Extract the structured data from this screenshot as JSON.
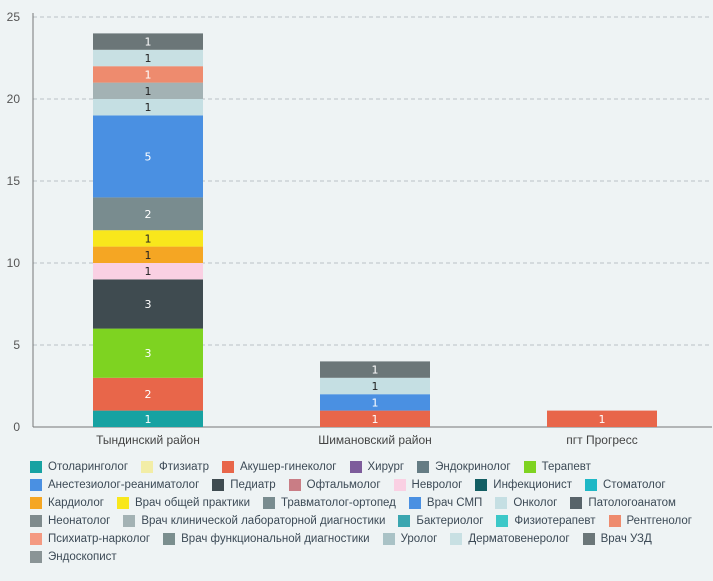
{
  "chart_data": {
    "type": "bar",
    "stacked": true,
    "title": "",
    "xlabel": "",
    "ylabel": "",
    "ylim": [
      0,
      25
    ],
    "yticks": [
      0,
      5,
      10,
      15,
      20,
      25
    ],
    "grid": true,
    "legend_position": "bottom",
    "categories": [
      "Тындинский район",
      "Шимановский район",
      "пгт Прогресс"
    ],
    "series": [
      {
        "name": "Отоларинголог",
        "color": "#17a2a2",
        "values": [
          1,
          0,
          0
        ]
      },
      {
        "name": "Фтизиатр",
        "color": "#f2eda6",
        "values": [
          0,
          0,
          0
        ]
      },
      {
        "name": "Акушер-гинеколог",
        "color": "#e8664a",
        "values": [
          2,
          1,
          1
        ]
      },
      {
        "name": "Хирург",
        "color": "#7d5c9b",
        "values": [
          0,
          0,
          0
        ]
      },
      {
        "name": "Эндокринолог",
        "color": "#657c84",
        "values": [
          0,
          0,
          0
        ]
      },
      {
        "name": "Терапевт",
        "color": "#7ed321",
        "values": [
          3,
          0,
          0
        ]
      },
      {
        "name": "Анестезиолог-реаниматолог",
        "color": "#4a90e2",
        "values": [
          0,
          0,
          0
        ]
      },
      {
        "name": "Педиатр",
        "color": "#3f4b50",
        "values": [
          3,
          0,
          0
        ]
      },
      {
        "name": "Офтальмолог",
        "color": "#c97d85",
        "values": [
          0,
          0,
          0
        ]
      },
      {
        "name": "Невролог",
        "color": "#fad0e3",
        "values": [
          1,
          0,
          0
        ]
      },
      {
        "name": "Инфекционист",
        "color": "#135e63",
        "values": [
          0,
          0,
          0
        ]
      },
      {
        "name": "Стоматолог",
        "color": "#1fb8c6",
        "values": [
          0,
          0,
          0
        ]
      },
      {
        "name": "Кардиолог",
        "color": "#f5a623",
        "values": [
          1,
          0,
          0
        ]
      },
      {
        "name": "Врач общей практики",
        "color": "#f8e71c",
        "values": [
          1,
          0,
          0
        ]
      },
      {
        "name": "Травматолог-ортопед",
        "color": "#798c8f",
        "values": [
          2,
          0,
          0
        ]
      },
      {
        "name": "Врач СМП",
        "color": "#4a90e2",
        "values": [
          5,
          1,
          0
        ]
      },
      {
        "name": "Онколог",
        "color": "#c5dfe3",
        "values": [
          1,
          1,
          0
        ]
      },
      {
        "name": "Патологоанатом",
        "color": "#58646a",
        "values": [
          0,
          0,
          0
        ]
      },
      {
        "name": "Неонатолог",
        "color": "#7f8b8d",
        "values": [
          0,
          0,
          0
        ]
      },
      {
        "name": "Врач клинической лабораторной диагностики",
        "color": "#a3b2b4",
        "values": [
          1,
          0,
          0
        ]
      },
      {
        "name": "Бактериолог",
        "color": "#3aa6b0",
        "values": [
          0,
          0,
          0
        ]
      },
      {
        "name": "Физиотерапевт",
        "color": "#3cc8c8",
        "values": [
          0,
          0,
          0
        ]
      },
      {
        "name": "Рентгенолог",
        "color": "#ee8b6e",
        "values": [
          1,
          0,
          0
        ]
      },
      {
        "name": "Психиатр-нарколог",
        "color": "#f49a82",
        "values": [
          0,
          0,
          0
        ]
      },
      {
        "name": "Врач функциональной диагностики",
        "color": "#7a8e8e",
        "values": [
          0,
          0,
          0
        ]
      },
      {
        "name": "Уролог",
        "color": "#a9c2c6",
        "values": [
          0,
          0,
          0
        ]
      },
      {
        "name": "Дерматовенеролог",
        "color": "#c8e0e3",
        "values": [
          1,
          0,
          0
        ]
      },
      {
        "name": "Врач УЗД",
        "color": "#6b7678",
        "values": [
          1,
          1,
          0
        ]
      },
      {
        "name": "Эндоскопист",
        "color": "#8a9496",
        "values": [
          0,
          0,
          0
        ]
      }
    ]
  }
}
